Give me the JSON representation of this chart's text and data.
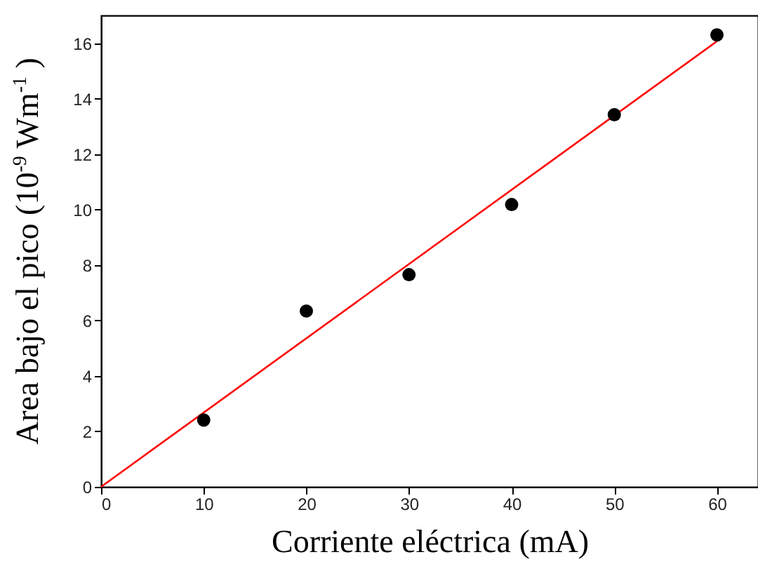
{
  "chart_data": {
    "type": "scatter",
    "xlabel": "Corriente eléctrica (mA)",
    "ylabel": "Area bajo el pico (10$^{-9}$ Wm$^{-1}$ )",
    "x": [
      10,
      20,
      30,
      40,
      50,
      60
    ],
    "series": [
      {
        "color": "#000000",
        "marker": "circle",
        "values": [
          2.41,
          6.34,
          7.65,
          10.18,
          13.42,
          16.3
        ]
      },
      {
        "type": "line",
        "color": "#ff0000",
        "marker": "none",
        "line_style": "solid",
        "x": [
          0,
          60
        ],
        "values": [
          0,
          16.07
        ]
      }
    ],
    "xlim": [
      0,
      64
    ],
    "ylim": [
      0,
      17
    ],
    "xticks": [
      0,
      10,
      20,
      30,
      40,
      50,
      60
    ],
    "yticks": [
      0,
      2,
      4,
      6,
      8,
      10,
      12,
      14,
      16
    ],
    "grid": false
  }
}
